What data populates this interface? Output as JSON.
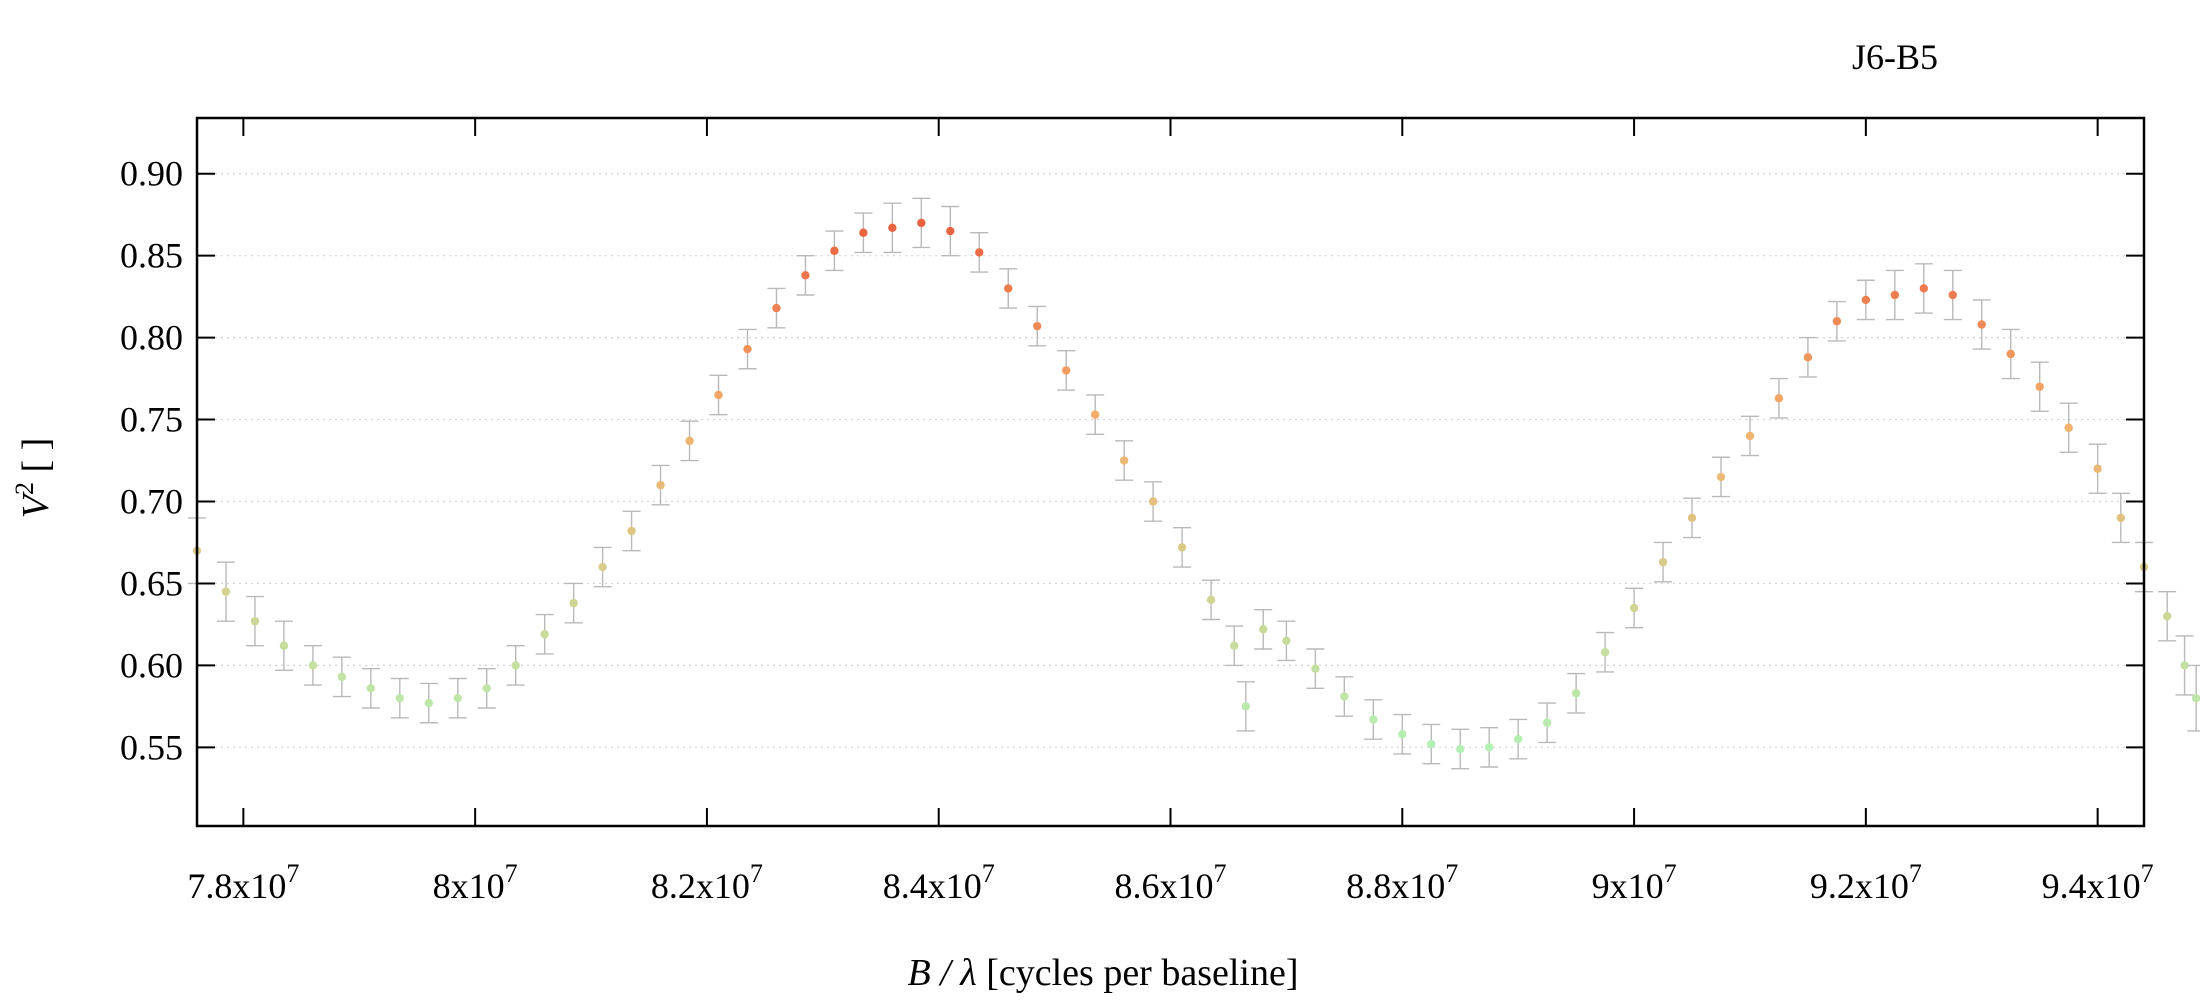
{
  "chart_data": {
    "type": "scatter",
    "title": "J6-B5",
    "xlabel": {
      "var": "B / λ",
      "unit": " [cycles per baseline]"
    },
    "ylabel": {
      "var": "V",
      "sup": "2",
      "unit": " [ ]"
    },
    "xlim": [
      77600000,
      94400000
    ],
    "ylim": [
      0.502,
      0.934
    ],
    "x_ticks": [
      {
        "value": 78000000,
        "mant": "7.8x10",
        "exp": "7"
      },
      {
        "value": 80000000,
        "mant": "8x10",
        "exp": "7"
      },
      {
        "value": 82000000,
        "mant": "8.2x10",
        "exp": "7"
      },
      {
        "value": 84000000,
        "mant": "8.4x10",
        "exp": "7"
      },
      {
        "value": 86000000,
        "mant": "8.6x10",
        "exp": "7"
      },
      {
        "value": 88000000,
        "mant": "8.8x10",
        "exp": "7"
      },
      {
        "value": 90000000,
        "mant": "9x10",
        "exp": "7"
      },
      {
        "value": 92000000,
        "mant": "9.2x10",
        "exp": "7"
      },
      {
        "value": 94000000,
        "mant": "9.4x10",
        "exp": "7"
      }
    ],
    "y_ticks": [
      "0.55",
      "0.60",
      "0.65",
      "0.70",
      "0.75",
      "0.80",
      "0.85",
      "0.90"
    ],
    "grid": "horizontal dotted",
    "legend": "none",
    "color_scale": {
      "low": "#b3f0b3",
      "mid": "#f4b06a",
      "high": "#e85a3c",
      "error_bar": "#b9b9b9"
    },
    "points": [
      [
        77.6,
        0.67,
        0.02
      ],
      [
        77.85,
        0.645,
        0.018
      ],
      [
        78.1,
        0.627,
        0.015
      ],
      [
        78.35,
        0.612,
        0.015
      ],
      [
        78.6,
        0.6,
        0.012
      ],
      [
        78.85,
        0.593,
        0.012
      ],
      [
        79.1,
        0.586,
        0.012
      ],
      [
        79.35,
        0.58,
        0.012
      ],
      [
        79.6,
        0.577,
        0.012
      ],
      [
        79.85,
        0.58,
        0.012
      ],
      [
        80.1,
        0.586,
        0.012
      ],
      [
        80.35,
        0.6,
        0.012
      ],
      [
        80.6,
        0.619,
        0.012
      ],
      [
        80.85,
        0.638,
        0.012
      ],
      [
        81.1,
        0.66,
        0.012
      ],
      [
        81.35,
        0.682,
        0.012
      ],
      [
        81.6,
        0.71,
        0.012
      ],
      [
        81.85,
        0.737,
        0.012
      ],
      [
        82.1,
        0.765,
        0.012
      ],
      [
        82.35,
        0.793,
        0.012
      ],
      [
        82.6,
        0.818,
        0.012
      ],
      [
        82.85,
        0.838,
        0.012
      ],
      [
        83.1,
        0.853,
        0.012
      ],
      [
        83.35,
        0.864,
        0.012
      ],
      [
        83.6,
        0.867,
        0.015
      ],
      [
        83.85,
        0.87,
        0.015
      ],
      [
        84.1,
        0.865,
        0.015
      ],
      [
        84.35,
        0.852,
        0.012
      ],
      [
        84.6,
        0.83,
        0.012
      ],
      [
        84.85,
        0.807,
        0.012
      ],
      [
        85.1,
        0.78,
        0.012
      ],
      [
        85.35,
        0.753,
        0.012
      ],
      [
        85.6,
        0.725,
        0.012
      ],
      [
        85.85,
        0.7,
        0.012
      ],
      [
        86.1,
        0.672,
        0.012
      ],
      [
        86.35,
        0.64,
        0.012
      ],
      [
        86.55,
        0.612,
        0.012
      ],
      [
        86.65,
        0.575,
        0.015
      ],
      [
        86.8,
        0.622,
        0.012
      ],
      [
        87.0,
        0.615,
        0.012
      ],
      [
        87.25,
        0.598,
        0.012
      ],
      [
        87.5,
        0.581,
        0.012
      ],
      [
        87.75,
        0.567,
        0.012
      ],
      [
        88.0,
        0.558,
        0.012
      ],
      [
        88.25,
        0.552,
        0.012
      ],
      [
        88.5,
        0.549,
        0.012
      ],
      [
        88.75,
        0.55,
        0.012
      ],
      [
        89.0,
        0.555,
        0.012
      ],
      [
        89.25,
        0.565,
        0.012
      ],
      [
        89.5,
        0.583,
        0.012
      ],
      [
        89.75,
        0.608,
        0.012
      ],
      [
        90.0,
        0.635,
        0.012
      ],
      [
        90.25,
        0.663,
        0.012
      ],
      [
        90.5,
        0.69,
        0.012
      ],
      [
        90.75,
        0.715,
        0.012
      ],
      [
        91.0,
        0.74,
        0.012
      ],
      [
        91.25,
        0.763,
        0.012
      ],
      [
        91.5,
        0.788,
        0.012
      ],
      [
        91.75,
        0.81,
        0.012
      ],
      [
        92.0,
        0.823,
        0.012
      ],
      [
        92.25,
        0.826,
        0.015
      ],
      [
        92.5,
        0.83,
        0.015
      ],
      [
        92.75,
        0.826,
        0.015
      ],
      [
        93.0,
        0.808,
        0.015
      ],
      [
        93.25,
        0.79,
        0.015
      ],
      [
        93.5,
        0.77,
        0.015
      ],
      [
        93.75,
        0.745,
        0.015
      ],
      [
        94.0,
        0.72,
        0.015
      ],
      [
        94.2,
        0.69,
        0.015
      ],
      [
        94.4,
        0.66,
        0.015
      ],
      [
        94.6,
        0.63,
        0.015
      ],
      [
        94.75,
        0.6,
        0.018
      ],
      [
        94.85,
        0.58,
        0.02
      ]
    ]
  }
}
